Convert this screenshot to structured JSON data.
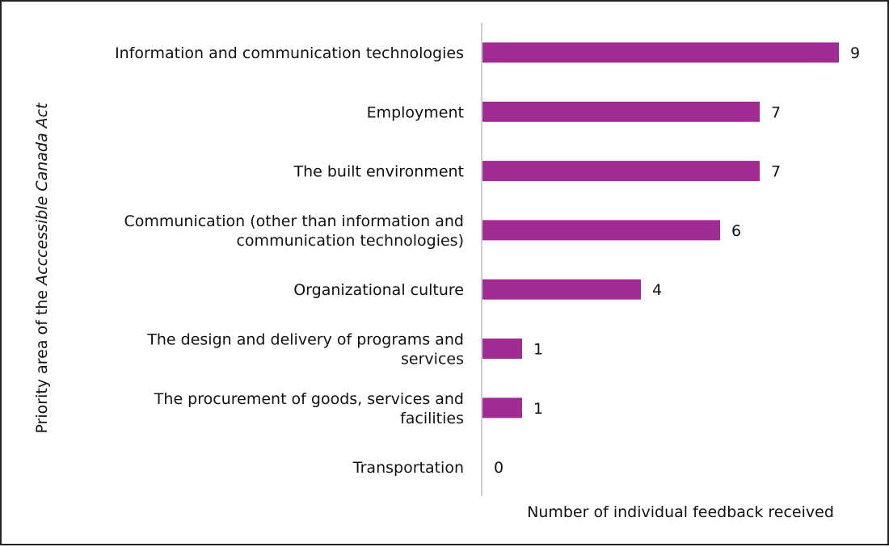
{
  "chart_data": {
    "type": "bar",
    "orientation": "horizontal",
    "categories": [
      [
        "Information and communication technologies"
      ],
      [
        "Employment"
      ],
      [
        "The built environment"
      ],
      [
        "Communication (other than information and",
        "communication technologies)"
      ],
      [
        "Organizational culture"
      ],
      [
        "The design and delivery of programs and",
        "services"
      ],
      [
        "The procurement of goods, services and",
        "facilities"
      ],
      [
        "Transportation"
      ]
    ],
    "values": [
      9,
      7,
      7,
      6,
      4,
      1,
      1,
      0
    ],
    "xlabel": "Number of individual feedback received",
    "ylabel_prefix": "Priority area of the ",
    "ylabel_italic": "Acccessible Canada Act",
    "xlim": [
      0,
      9.5
    ],
    "grid": false,
    "data_labels": true,
    "bar_color": "#A02B93",
    "axis_color": "#D0D0D0"
  }
}
